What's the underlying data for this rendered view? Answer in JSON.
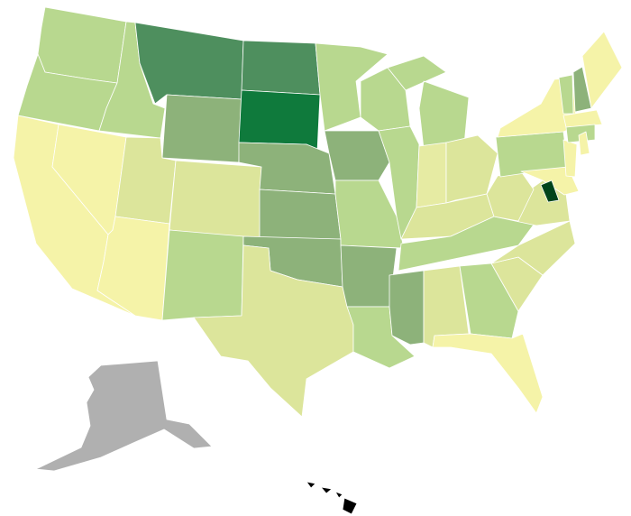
{
  "map": {
    "region_colors": [
      "#b8d88f",
      "#b8d88f",
      "#f5f3a8",
      "#f5f3a8",
      "#b8d88f",
      "#4e8f5e",
      "#8db27a",
      "#dce59b",
      "#dce59b",
      "#f5f3a8",
      "#b8d88f",
      "#4e8f5e",
      "#0f7a3c",
      "#8db27a",
      "#8db27a",
      "#8db27a",
      "#dce59b",
      "#b8d88f",
      "#8db27a",
      "#b8d88f",
      "#8db27a",
      "#b8d88f",
      "#8db27a",
      "#b8d88f",
      "#b8d88f",
      "#b8d88f",
      "#e6eba3",
      "#dce59b",
      "#dce59b",
      "#b8d88f",
      "#dce59b",
      "#b8d88f",
      "#dce59b",
      "#f5f3a8",
      "#dce59b",
      "#dce59b",
      "#dce59b",
      "#b8d88f",
      "#f5f3a8",
      "#f5f3a8",
      "#f5f3a8",
      "#f5f3a8",
      "#b8d88f",
      "#b8d88f",
      "#8db27a",
      "#f5f3a8",
      "#f5f3a8",
      "#00441b",
      "#b0b0b0"
    ]
  }
}
